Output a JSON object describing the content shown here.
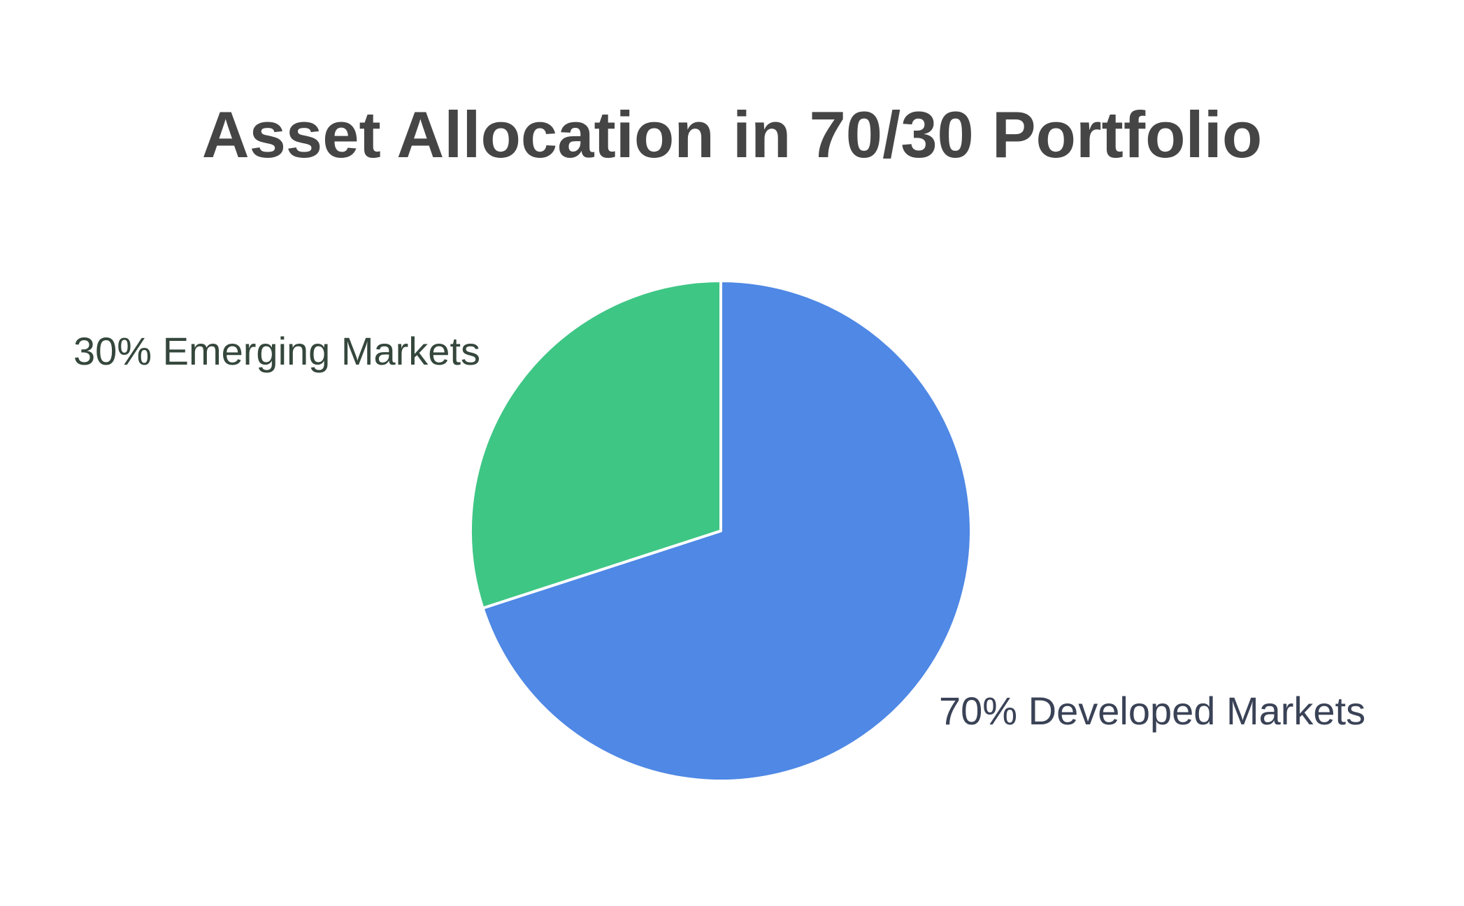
{
  "chart_data": {
    "type": "pie",
    "title": "Asset Allocation in 70/30 Portfolio",
    "slices": [
      {
        "label": "70% Developed Markets",
        "category": "Developed Markets",
        "value": 70,
        "color": "#4f88e5",
        "label_color": "#3a4256"
      },
      {
        "label": "30% Emerging Markets",
        "category": "Emerging Markets",
        "value": 30,
        "color": "#3ec685",
        "label_color": "#35473c"
      }
    ],
    "start_direction": "12 o'clock",
    "direction": "clockwise",
    "slice_border_color": "#ffffff",
    "legend": "none"
  }
}
